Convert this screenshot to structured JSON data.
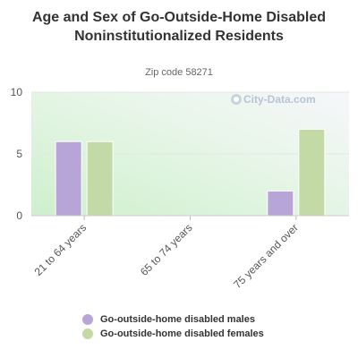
{
  "chart_data": {
    "type": "bar",
    "title": "Age and Sex of Go-Outside-Home Disabled Noninstitutionalized Residents",
    "subtitle": "Zip code 58271",
    "categories": [
      "21 to 64 years",
      "65 to 74 years",
      "75 years and over"
    ],
    "series": [
      {
        "name": "Go-outside-home disabled males",
        "values": [
          6,
          0,
          2
        ],
        "color": "#b8a5d8"
      },
      {
        "name": "Go-outside-home disabled females",
        "values": [
          6,
          0,
          7
        ],
        "color": "#c3daa6"
      }
    ],
    "ylim": [
      0,
      10
    ],
    "yticks": [
      0,
      5,
      10
    ],
    "xlabel": "",
    "ylabel": "",
    "grid": true,
    "legend": "bottom",
    "watermark": "City-Data.com"
  }
}
